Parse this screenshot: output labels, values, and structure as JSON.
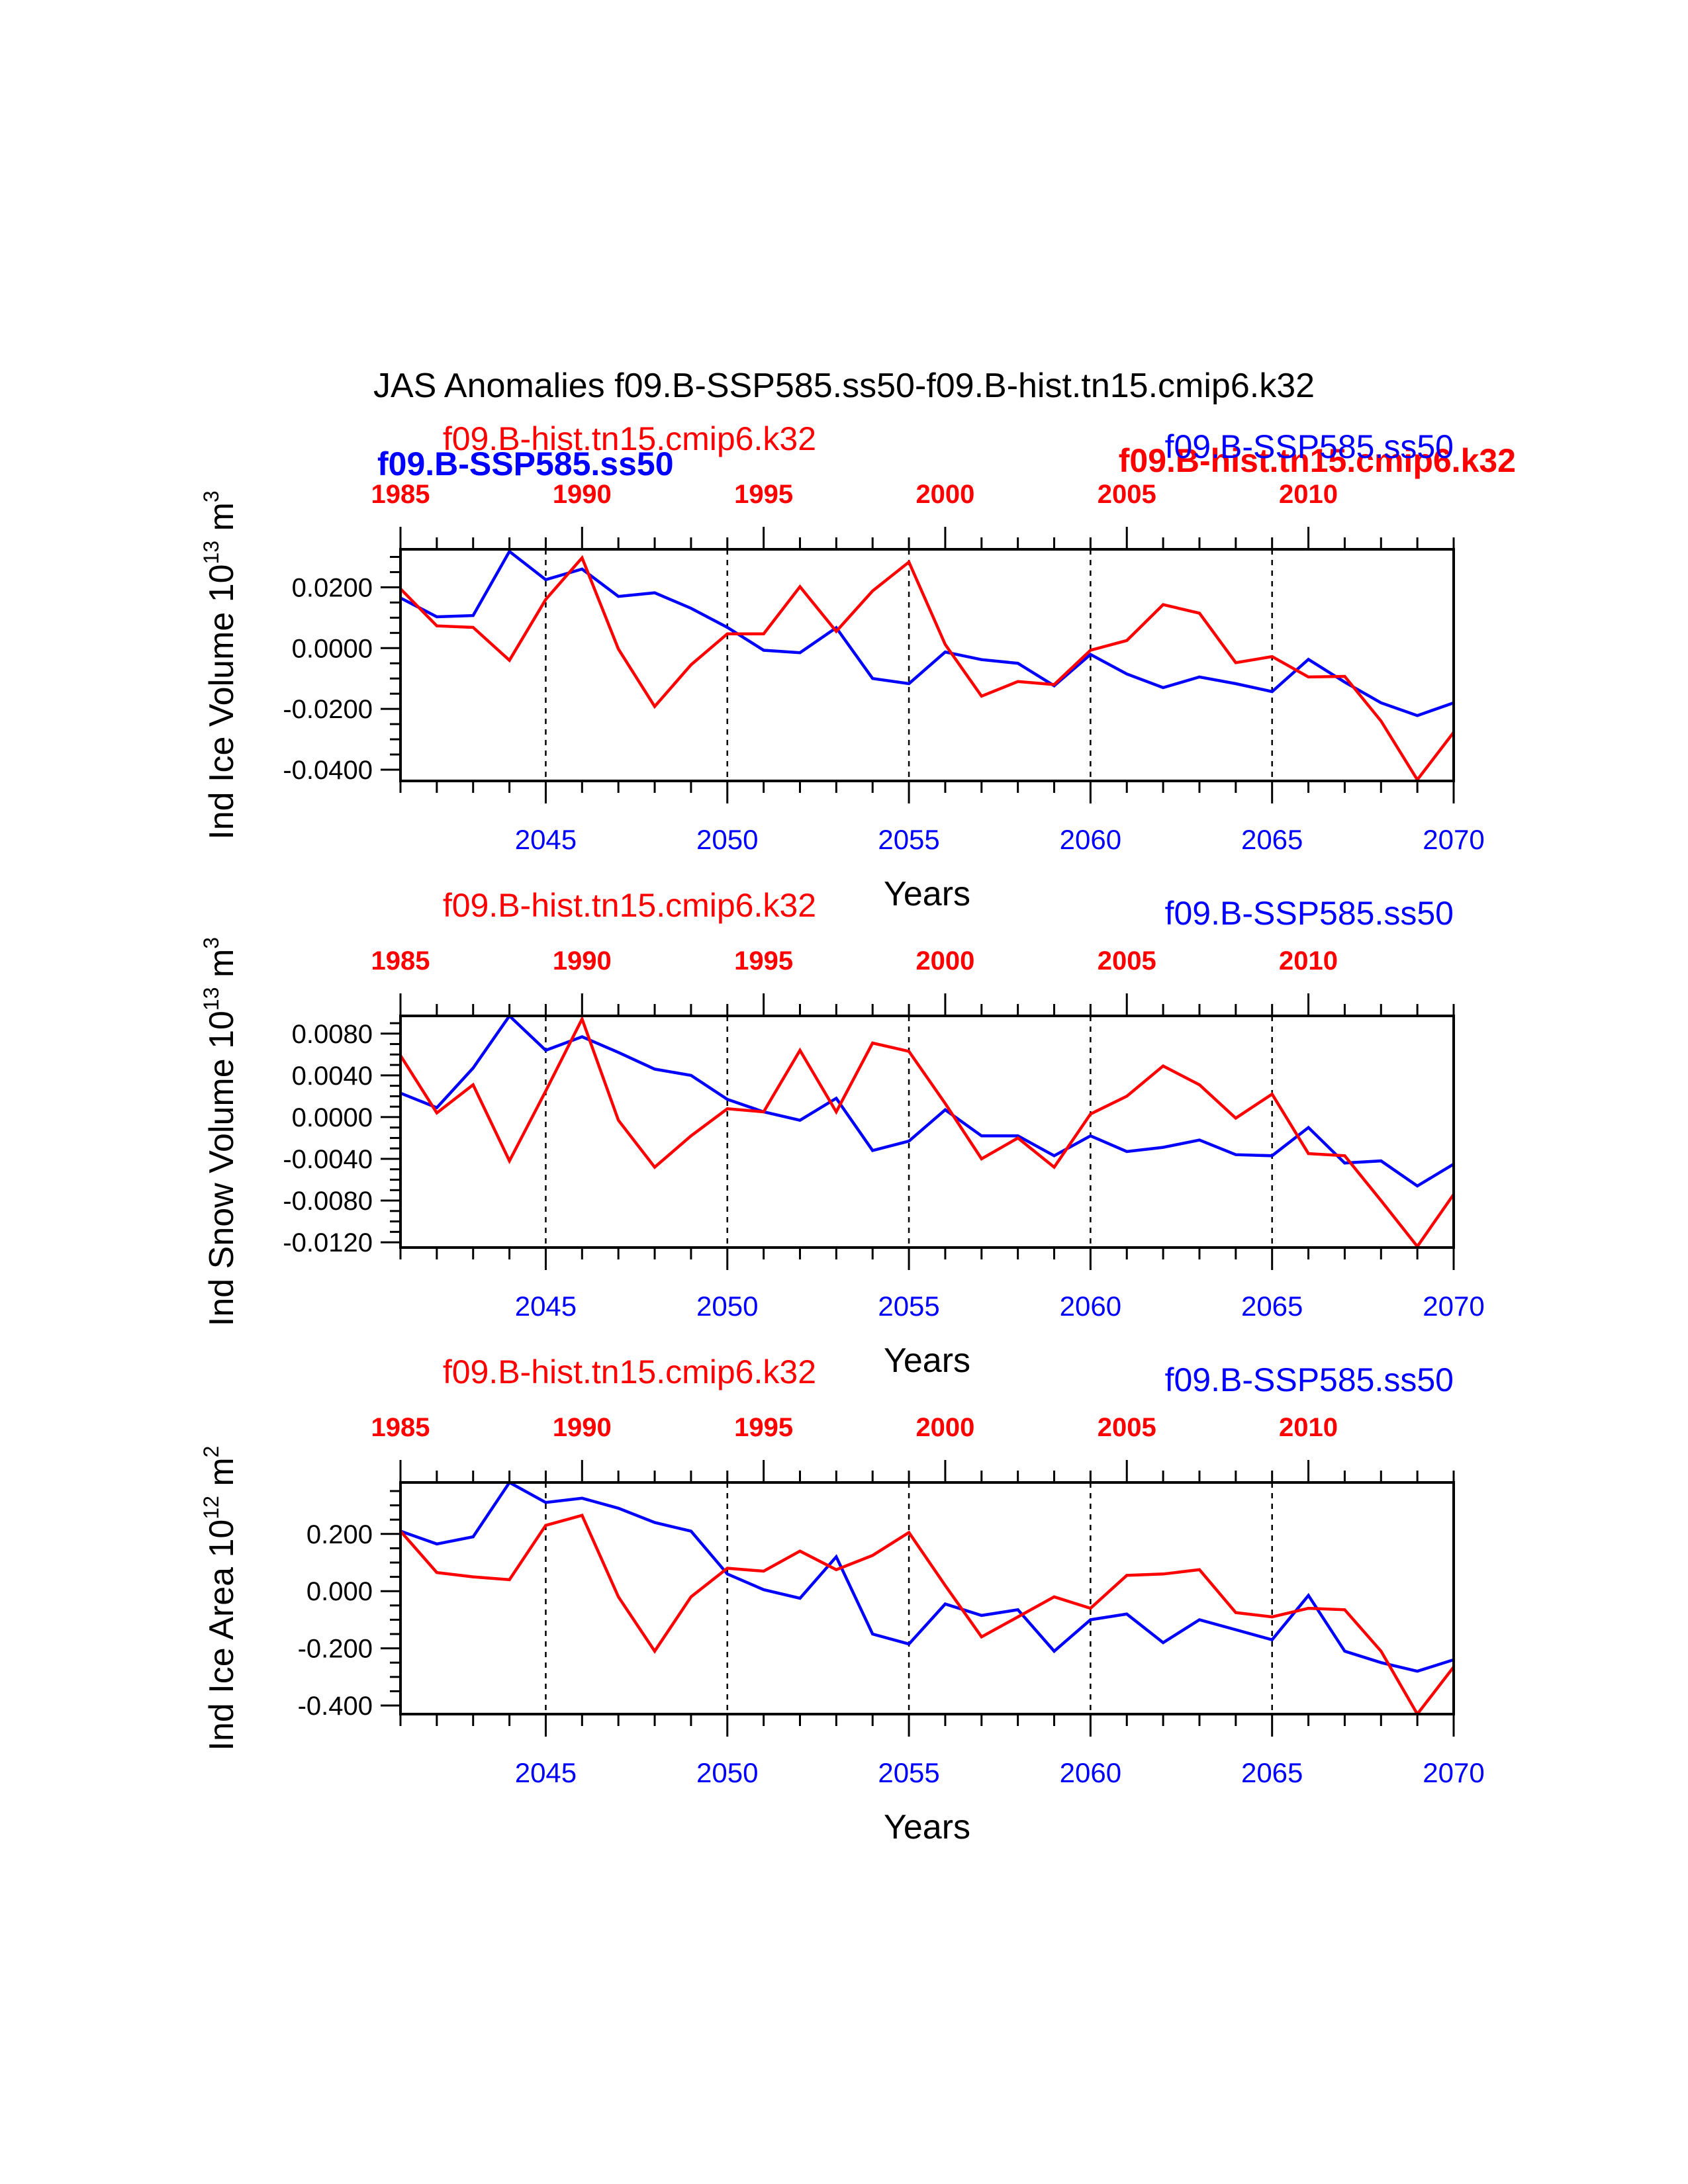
{
  "figure": {
    "title": "JAS Anomalies f09.B-SSP585.ss50-f09.B-hist.tn15.cmip6.k32",
    "colors": {
      "ssp": "#0000ff",
      "hist": "#ff0000",
      "axis": "#000000"
    },
    "overlap_labels": {
      "left": "f09.B-SSP585.ss50",
      "right": "f09.B-hist.tn15.cmip6.k32"
    }
  },
  "chart_data": [
    {
      "type": "line",
      "ylabel_main": "Ind Ice Volume 10",
      "ylabel_exp": "13",
      "ylabel_unit": " m",
      "ylabel_unit_exp": "3",
      "xlabel": "Years",
      "legend_hist": "f09.B-hist.tn15.cmip6.k32",
      "legend_ssp": "f09.B-SSP585.ss50",
      "x_bottom_ticks": [
        "2045",
        "2050",
        "2055",
        "2060",
        "2065",
        "2070"
      ],
      "x_top_ticks": [
        "1985",
        "1990",
        "1995",
        "2000",
        "2005",
        "2010"
      ],
      "y_ticks": [
        "0.0200",
        "0.0000",
        "-0.0200",
        "-0.0400"
      ],
      "y_tick_values": [
        0.02,
        0.0,
        -0.02,
        -0.04
      ],
      "ylim": [
        -0.0437,
        0.0325
      ],
      "xlim": [
        2041,
        2070
      ],
      "dashed_years": [
        2045,
        2050,
        2055,
        2060,
        2065
      ],
      "series": [
        {
          "name": "f09.B-SSP585.ss50",
          "x": [
            2041,
            2042,
            2043,
            2044,
            2045,
            2046,
            2047,
            2048,
            2049,
            2050,
            2051,
            2052,
            2053,
            2054,
            2055,
            2056,
            2057,
            2058,
            2059,
            2060,
            2061,
            2062,
            2063,
            2064,
            2065,
            2066,
            2067,
            2068,
            2069,
            2070
          ],
          "values": [
            0.0165,
            0.0103,
            0.0107,
            0.0318,
            0.0225,
            0.026,
            0.017,
            0.0182,
            0.0131,
            0.0068,
            -0.0007,
            -0.0015,
            0.0067,
            -0.01,
            -0.0117,
            -0.0013,
            -0.0038,
            -0.005,
            -0.0124,
            -0.0021,
            -0.0085,
            -0.013,
            -0.0095,
            -0.0117,
            -0.0143,
            -0.0037,
            -0.0112,
            -0.018,
            -0.0222,
            -0.018
          ]
        },
        {
          "name": "f09.B-hist.tn15.cmip6.k32",
          "x": [
            2041,
            2042,
            2043,
            2044,
            2045,
            2046,
            2047,
            2048,
            2049,
            2050,
            2051,
            2052,
            2053,
            2054,
            2055,
            2056,
            2057,
            2058,
            2059,
            2060,
            2061,
            2062,
            2063,
            2064,
            2065,
            2066,
            2067,
            2068,
            2069,
            2070
          ],
          "values": [
            0.0195,
            0.0073,
            0.0068,
            -0.004,
            0.016,
            0.0297,
            -0.0003,
            -0.0192,
            -0.0055,
            0.0047,
            0.0047,
            0.0202,
            0.0055,
            0.0188,
            0.0283,
            0.0012,
            -0.0158,
            -0.011,
            -0.012,
            -0.0007,
            0.0025,
            0.0143,
            0.0115,
            -0.0048,
            -0.0028,
            -0.0095,
            -0.0093,
            -0.024,
            -0.0433,
            -0.0277
          ]
        }
      ]
    },
    {
      "type": "line",
      "ylabel_main": "Ind Snow Volume 10",
      "ylabel_exp": "13",
      "ylabel_unit": " m",
      "ylabel_unit_exp": "3",
      "xlabel": "Years",
      "legend_hist": "f09.B-hist.tn15.cmip6.k32",
      "legend_ssp": "f09.B-SSP585.ss50",
      "x_bottom_ticks": [
        "2045",
        "2050",
        "2055",
        "2060",
        "2065",
        "2070"
      ],
      "x_top_ticks": [
        "1985",
        "1990",
        "1995",
        "2000",
        "2005",
        "2010"
      ],
      "y_ticks": [
        "0.0080",
        "0.0040",
        "0.0000",
        "-0.0040",
        "-0.0080",
        "-0.0120"
      ],
      "y_tick_values": [
        0.008,
        0.004,
        0.0,
        -0.004,
        -0.008,
        -0.012
      ],
      "ylim": [
        -0.0125,
        0.0097
      ],
      "xlim": [
        2041,
        2070
      ],
      "dashed_years": [
        2045,
        2050,
        2055,
        2060,
        2065
      ],
      "series": [
        {
          "name": "f09.B-SSP585.ss50",
          "x": [
            2041,
            2042,
            2043,
            2044,
            2045,
            2046,
            2047,
            2048,
            2049,
            2050,
            2051,
            2052,
            2053,
            2054,
            2055,
            2056,
            2057,
            2058,
            2059,
            2060,
            2061,
            2062,
            2063,
            2064,
            2065,
            2066,
            2067,
            2068,
            2069,
            2070
          ],
          "values": [
            0.0023,
            0.0009,
            0.0047,
            0.0097,
            0.0064,
            0.0077,
            0.0062,
            0.0046,
            0.004,
            0.0017,
            0.0005,
            -0.0003,
            0.0018,
            -0.0032,
            -0.0023,
            0.0007,
            -0.0018,
            -0.0018,
            -0.0037,
            -0.0018,
            -0.0033,
            -0.0029,
            -0.0022,
            -0.0036,
            -0.0037,
            -0.001,
            -0.0044,
            -0.0042,
            -0.0066,
            -0.0045
          ]
        },
        {
          "name": "f09.B-hist.tn15.cmip6.k32",
          "x": [
            2041,
            2042,
            2043,
            2044,
            2045,
            2046,
            2047,
            2048,
            2049,
            2050,
            2051,
            2052,
            2053,
            2054,
            2055,
            2056,
            2057,
            2058,
            2059,
            2060,
            2061,
            2062,
            2063,
            2064,
            2065,
            2066,
            2067,
            2068,
            2069,
            2070
          ],
          "values": [
            0.0059,
            0.0004,
            0.0031,
            -0.0042,
            0.0025,
            0.0094,
            -0.0003,
            -0.0048,
            -0.0018,
            0.0008,
            0.0005,
            0.0064,
            0.0005,
            0.0071,
            0.0063,
            0.0013,
            -0.004,
            -0.002,
            -0.0048,
            0.0003,
            0.002,
            0.0049,
            0.0031,
            -0.0001,
            0.0022,
            -0.0035,
            -0.0037,
            -0.008,
            -0.0124,
            -0.0074
          ]
        }
      ]
    },
    {
      "type": "line",
      "ylabel_main": "Ind Ice Area 10",
      "ylabel_exp": "12",
      "ylabel_unit": " m",
      "ylabel_unit_exp": "2",
      "xlabel": "Years",
      "legend_hist": "f09.B-hist.tn15.cmip6.k32",
      "legend_ssp": "f09.B-SSP585.ss50",
      "x_bottom_ticks": [
        "2045",
        "2050",
        "2055",
        "2060",
        "2065",
        "2070"
      ],
      "x_top_ticks": [
        "1985",
        "1990",
        "1995",
        "2000",
        "2005",
        "2010"
      ],
      "y_ticks": [
        "0.200",
        "0.000",
        "-0.200",
        "-0.400"
      ],
      "y_tick_values": [
        0.2,
        0.0,
        -0.2,
        -0.4
      ],
      "ylim": [
        -0.43,
        0.38
      ],
      "xlim": [
        2041,
        2070
      ],
      "dashed_years": [
        2045,
        2050,
        2055,
        2060,
        2065
      ],
      "series": [
        {
          "name": "f09.B-SSP585.ss50",
          "x": [
            2041,
            2042,
            2043,
            2044,
            2045,
            2046,
            2047,
            2048,
            2049,
            2050,
            2051,
            2052,
            2053,
            2054,
            2055,
            2056,
            2057,
            2058,
            2059,
            2060,
            2061,
            2062,
            2063,
            2064,
            2065,
            2066,
            2067,
            2068,
            2069,
            2070
          ],
          "values": [
            0.21,
            0.165,
            0.19,
            0.38,
            0.31,
            0.325,
            0.29,
            0.24,
            0.21,
            0.06,
            0.005,
            -0.025,
            0.12,
            -0.15,
            -0.185,
            -0.045,
            -0.085,
            -0.065,
            -0.21,
            -0.1,
            -0.08,
            -0.18,
            -0.1,
            -0.135,
            -0.17,
            -0.015,
            -0.21,
            -0.25,
            -0.28,
            -0.24
          ]
        },
        {
          "name": "f09.B-hist.tn15.cmip6.k32",
          "x": [
            2041,
            2042,
            2043,
            2044,
            2045,
            2046,
            2047,
            2048,
            2049,
            2050,
            2051,
            2052,
            2053,
            2054,
            2055,
            2056,
            2057,
            2058,
            2059,
            2060,
            2061,
            2062,
            2063,
            2064,
            2065,
            2066,
            2067,
            2068,
            2069,
            2070
          ],
          "values": [
            0.21,
            0.065,
            0.05,
            0.04,
            0.23,
            0.265,
            -0.02,
            -0.21,
            -0.02,
            0.08,
            0.07,
            0.14,
            0.075,
            0.125,
            0.205,
            0.02,
            -0.16,
            -0.09,
            -0.02,
            -0.06,
            0.055,
            0.06,
            0.075,
            -0.075,
            -0.09,
            -0.06,
            -0.065,
            -0.21,
            -0.43,
            -0.265
          ]
        }
      ]
    }
  ]
}
